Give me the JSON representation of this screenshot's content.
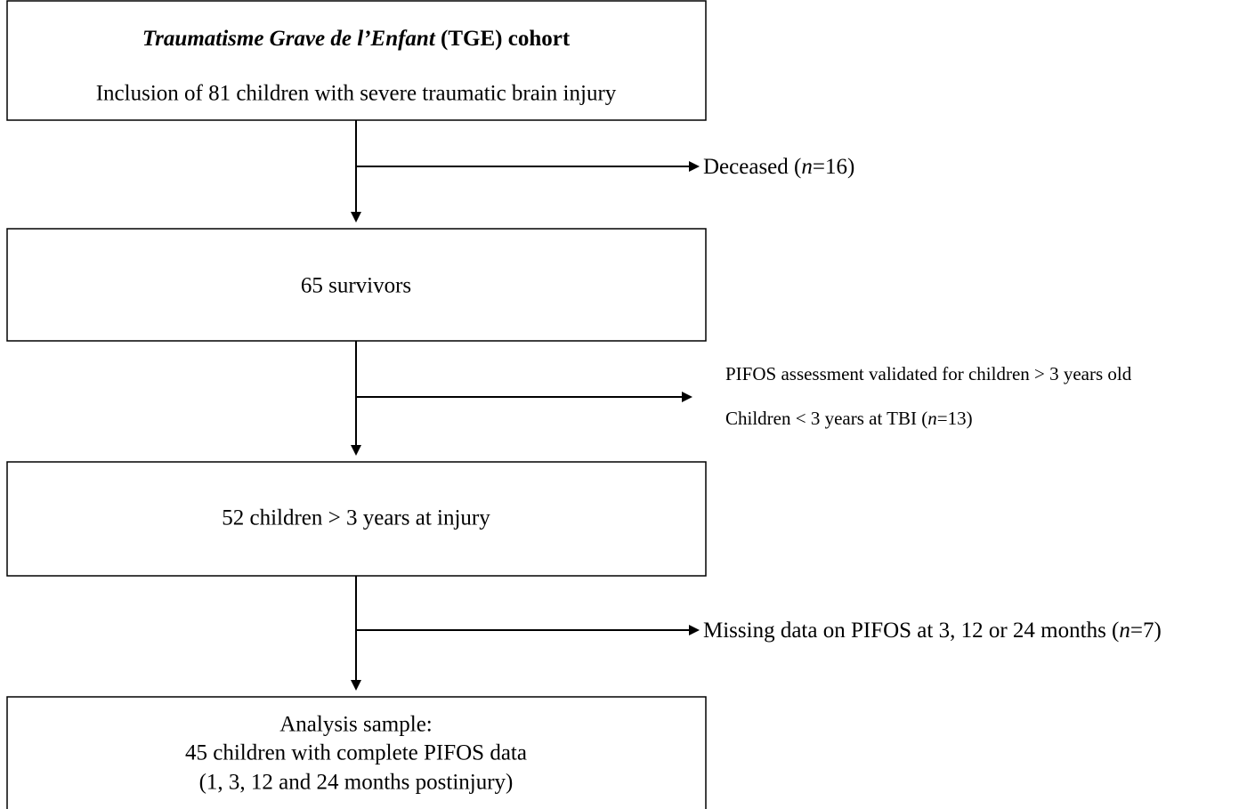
{
  "nodes": [
    {
      "title": [
        "Traumatisme Grave de l’Enfant",
        " (TGE) cohort"
      ],
      "label": "Inclusion of 81 children with severe traumatic brain injury"
    },
    {
      "label": "65 survivors"
    },
    {
      "label": "52 children > 3 years at injury"
    },
    {
      "lines": [
        "Analysis sample:",
        "45 children with complete PIFOS data",
        "(1, 3, 12 and 24 months postinjury)"
      ]
    }
  ],
  "exclusions": [
    {
      "parts": [
        "Deceased (",
        "n",
        "=16)"
      ]
    },
    {
      "note": "PIFOS assessment validated for children > 3 years old",
      "parts": [
        "Children < 3 years at TBI (",
        "n",
        "=13)"
      ]
    },
    {
      "parts": [
        "Missing data on PIFOS at 3, 12 or 24 months (",
        "n",
        "=7)"
      ]
    }
  ]
}
